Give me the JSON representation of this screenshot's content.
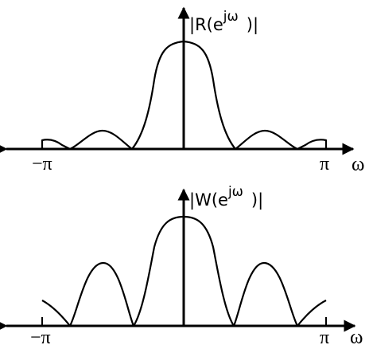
{
  "plots": [
    {
      "id": "r",
      "y_label": "|R(e",
      "y_label_sup": "jω",
      "y_label_tail": ")|",
      "x_label": "ω",
      "tick_left": "−π",
      "tick_right": "π"
    },
    {
      "id": "w",
      "y_label": "|W(e",
      "y_label_sup": "jω",
      "y_label_tail": ")|",
      "x_label": "ω",
      "tick_left": "−π",
      "tick_right": "π"
    }
  ]
}
